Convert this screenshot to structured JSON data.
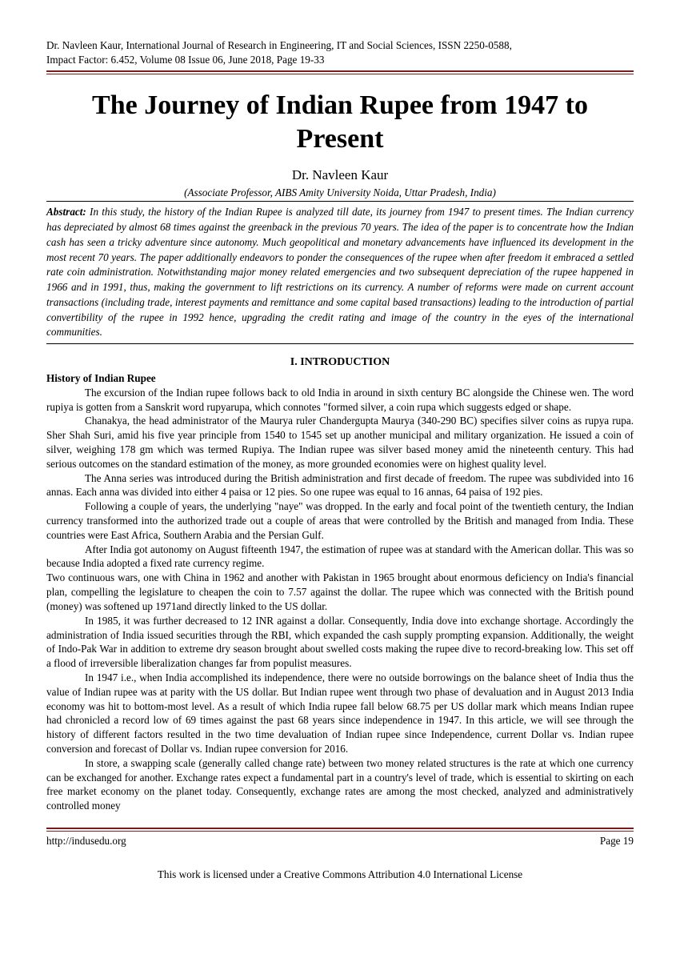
{
  "header": {
    "line1": "Dr. Navleen Kaur, International Journal of Research in Engineering, IT and Social Sciences, ISSN 2250-0588,",
    "line2": "Impact Factor: 6.452, Volume 08 Issue 06, June 2018, Page 19-33"
  },
  "title": "The Journey of Indian Rupee from 1947 to Present",
  "author": "Dr. Navleen Kaur",
  "affiliation": "(Associate Professor, AIBS Amity University Noida, Uttar Pradesh, India)",
  "abstract_label": "Abstract:",
  "abstract_text": " In this study, the history of the Indian Rupee is analyzed till date, its journey from 1947 to present times. The Indian currency has depreciated by almost 68 times against the greenback in the previous 70 years. The idea of the paper is to concentrate how the Indian cash has seen a tricky adventure since autonomy. Much geopolitical and monetary advancements have influenced its development in the most recent 70 years. The paper additionally endeavors to ponder the consequences of the rupee when after freedom it embraced a settled rate coin administration. Notwithstanding major money related emergencies and two subsequent depreciation of the rupee happened in 1966 and in 1991, thus, making the government to lift restrictions on its currency. A number of reforms were made on current account transactions (including trade, interest payments and remittance and some capital based transactions) leading to the introduction of partial convertibility of the rupee in 1992 hence, upgrading the credit rating and image of the country in the eyes of the international communities.",
  "section_heading": "I. INTRODUCTION",
  "subheading": "History of Indian Rupee",
  "paragraphs": {
    "p1": "The excursion of the Indian rupee follows back to old India in around in sixth century BC alongside the Chinese wen. The word rupiya is gotten from a Sanskrit word rupyarupa, which connotes \"formed silver, a coin rupa which suggests edged or shape.",
    "p2": "Chanakya, the head administrator of the Maurya ruler Chandergupta Maurya (340-290 BC) specifies silver coins as rupya rupa. Sher Shah Suri, amid his five year principle from 1540 to 1545 set up another municipal and military organization. He issued a coin of silver, weighing 178 gm which was termed Rupiya. The Indian rupee was silver based money amid the nineteenth century. This had serious outcomes on the standard estimation of the money, as more grounded economies were on highest quality level.",
    "p3": "The Anna series was introduced during the British administration and first decade of freedom. The rupee was subdivided into 16 annas. Each anna was divided into either 4 paisa or 12 pies. So one rupee was equal to 16 annas, 64 paisa of 192 pies.",
    "p4": "Following a couple of years, the underlying \"naye\" was dropped. In the early and focal point of the twentieth century, the Indian currency transformed into the authorized trade out a couple of areas that were controlled by the British and managed from India. These countries were East Africa, Southern Arabia and the Persian Gulf.",
    "p5": "After India got autonomy on August fifteenth 1947, the estimation of rupee was at standard with the American dollar. This was so because India adopted a fixed rate currency regime.",
    "p5b": "Two continuous wars, one with China in 1962 and another with Pakistan in 1965 brought about enormous deficiency on India's financial plan, compelling the legislature to cheapen the coin to 7.57 against the dollar. The rupee which was connected with the British pound (money) was softened up 1971and directly linked to the US dollar.",
    "p6": "In 1985, it was further decreased to 12 INR against a dollar. Consequently, India dove into exchange shortage. Accordingly the administration of India issued securities through the RBI, which expanded the cash supply prompting expansion. Additionally, the weight of Indo-Pak War in addition to extreme dry season brought about swelled costs making the rupee dive to record-breaking low. This set off a flood of irreversible liberalization changes far from populist measures.",
    "p7": "In 1947 i.e., when India accomplished its independence, there were no outside borrowings on the balance sheet of India thus the value of Indian rupee was at parity with the US dollar. But Indian rupee went through two phase of devaluation and in August 2013 India economy was hit to bottom-most level. As a result of which India rupee fall below 68.75 per US dollar mark which means Indian rupee had chronicled a record low of 69 times against the past 68 years since independence in 1947. In this article, we will see through the history of different factors resulted in the two time devaluation of Indian rupee since Independence, current Dollar vs. Indian rupee conversion and forecast of Dollar vs. Indian rupee conversion for 2016.",
    "p8": "In store, a swapping scale (generally called change rate) between two money related structures is the rate at which one currency can be exchanged for another. Exchange rates expect a fundamental part in a country's level of trade, which is essential to skirting on each free market economy on the planet today. Consequently, exchange rates are among the most checked, analyzed and administratively controlled money"
  },
  "footer": {
    "url": "http://indusedu.org",
    "page": "Page 19",
    "license": "This work is licensed under a Creative Commons Attribution 4.0 International License"
  },
  "colors": {
    "rule_primary": "#7a1c1c",
    "text": "#000000",
    "background": "#ffffff"
  }
}
